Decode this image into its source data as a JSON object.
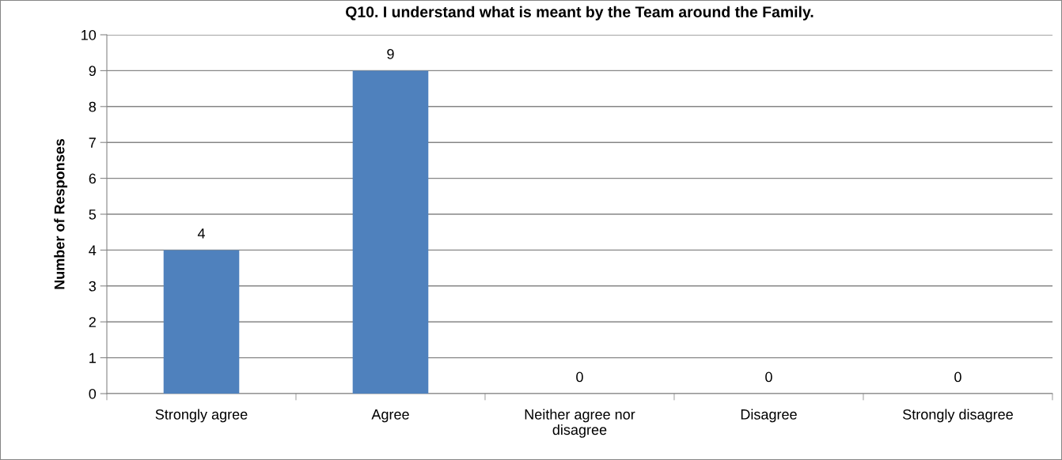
{
  "chart_data": {
    "type": "bar",
    "title": "Q10. I understand what is meant by the Team around the Family.",
    "ylabel": "Number of Responses",
    "categories": [
      "Strongly agree",
      "Agree",
      "Neither agree nor disagree",
      "Disagree",
      "Strongly disagree"
    ],
    "values": [
      4,
      9,
      0,
      0,
      0
    ],
    "color": "#4f81bd",
    "ylim": [
      0,
      10
    ],
    "yticks": [
      0,
      1,
      2,
      3,
      4,
      5,
      6,
      7,
      8,
      9,
      10
    ],
    "grid": "y",
    "data_labels": true,
    "legend": false
  }
}
